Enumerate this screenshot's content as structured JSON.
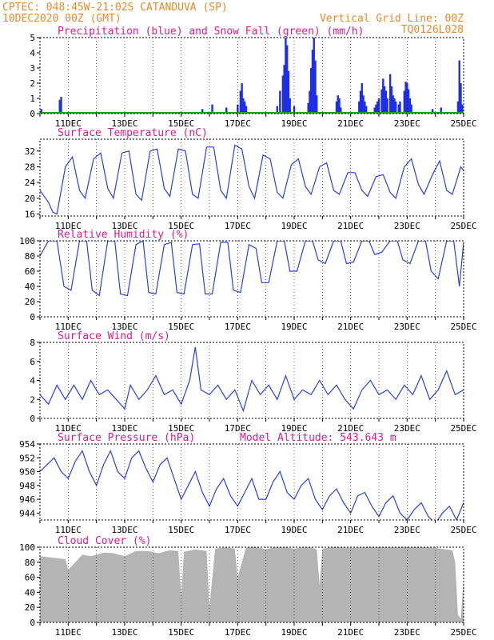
{
  "header": {
    "line1_left": "CPTEC:  048:45W-21:02S  CATANDUVA (SP)",
    "line2_left": "10DEC2020 00Z (GMT)",
    "line2_right": "Vertical Grid Line: 00Z",
    "line3_right": "TQ0126L028"
  },
  "colors": {
    "header": "#e58a2a",
    "title": "#d81b8c",
    "line": "#2a3fe0",
    "precip": "#1f2fe8",
    "snow": "#1aa31a",
    "cloud": "#b4b4b4"
  },
  "x_axis": {
    "start_day": 10,
    "end_day": 25,
    "tick_labels": [
      "11DEC",
      "13DEC",
      "15DEC",
      "17DEC",
      "19DEC",
      "21DEC",
      "23DEC",
      "25DEC"
    ],
    "tick_days": [
      11,
      13,
      15,
      17,
      19,
      21,
      23,
      25
    ]
  },
  "chart_data": [
    {
      "id": "precip",
      "type": "bar",
      "title": "Precipitation (blue) and Snow Fall (green) (mm/h)",
      "ylim": [
        0,
        5
      ],
      "yticks": [
        0,
        1,
        2,
        3,
        4,
        5
      ],
      "bars": [
        [
          10.05,
          0.3
        ],
        [
          10.7,
          0.9
        ],
        [
          10.75,
          1.1
        ],
        [
          15.75,
          0.3
        ],
        [
          16.1,
          0.6
        ],
        [
          16.6,
          0.4
        ],
        [
          17.0,
          0.6
        ],
        [
          17.1,
          1.5
        ],
        [
          17.15,
          2.0
        ],
        [
          17.2,
          1.0
        ],
        [
          17.25,
          0.8
        ],
        [
          17.3,
          0.5
        ],
        [
          18.4,
          0.5
        ],
        [
          18.5,
          1.5
        ],
        [
          18.6,
          2.5
        ],
        [
          18.65,
          3.2
        ],
        [
          18.7,
          5.0
        ],
        [
          18.75,
          4.5
        ],
        [
          18.8,
          2.8
        ],
        [
          18.85,
          1.0
        ],
        [
          19.0,
          0.5
        ],
        [
          19.5,
          0.7
        ],
        [
          19.55,
          1.5
        ],
        [
          19.6,
          3.0
        ],
        [
          19.65,
          4.2
        ],
        [
          19.7,
          5.0
        ],
        [
          19.75,
          3.5
        ],
        [
          19.8,
          1.2
        ],
        [
          20.5,
          0.8
        ],
        [
          20.55,
          1.2
        ],
        [
          20.6,
          1.0
        ],
        [
          20.65,
          0.4
        ],
        [
          21.3,
          0.8
        ],
        [
          21.35,
          1.5
        ],
        [
          21.4,
          2.0
        ],
        [
          21.45,
          1.2
        ],
        [
          21.5,
          0.8
        ],
        [
          21.55,
          0.5
        ],
        [
          21.85,
          0.4
        ],
        [
          21.9,
          0.6
        ],
        [
          21.95,
          0.8
        ],
        [
          22.0,
          1.0
        ],
        [
          22.1,
          1.6
        ],
        [
          22.15,
          2.3
        ],
        [
          22.2,
          1.8
        ],
        [
          22.25,
          1.5
        ],
        [
          22.3,
          1.0
        ],
        [
          22.4,
          2.6
        ],
        [
          22.45,
          1.8
        ],
        [
          22.5,
          1.2
        ],
        [
          22.55,
          1.0
        ],
        [
          22.6,
          0.8
        ],
        [
          22.7,
          0.6
        ],
        [
          22.75,
          0.8
        ],
        [
          22.9,
          1.5
        ],
        [
          22.95,
          2.1
        ],
        [
          23.0,
          2.0
        ],
        [
          23.05,
          1.6
        ],
        [
          23.1,
          1.0
        ],
        [
          23.15,
          0.6
        ],
        [
          23.9,
          0.3
        ],
        [
          24.2,
          0.4
        ],
        [
          24.8,
          0.8
        ],
        [
          24.85,
          3.5
        ],
        [
          24.9,
          2.0
        ],
        [
          24.95,
          0.6
        ]
      ]
    },
    {
      "id": "temp",
      "type": "line",
      "title": "Surface Temperature (nC)",
      "ylim": [
        15.5,
        35
      ],
      "yticks": [
        16,
        20,
        24,
        28,
        32
      ],
      "x": [
        10.0,
        10.3,
        10.45,
        10.6,
        10.9,
        11.15,
        11.4,
        11.6,
        11.9,
        12.15,
        12.4,
        12.6,
        12.9,
        13.15,
        13.4,
        13.6,
        13.9,
        14.15,
        14.4,
        14.6,
        14.9,
        15.15,
        15.4,
        15.6,
        15.9,
        16.15,
        16.4,
        16.6,
        16.9,
        17.15,
        17.4,
        17.6,
        17.9,
        18.15,
        18.4,
        18.6,
        18.9,
        19.15,
        19.4,
        19.6,
        19.9,
        20.15,
        20.4,
        20.6,
        20.9,
        21.15,
        21.4,
        21.6,
        21.9,
        22.15,
        22.4,
        22.6,
        22.9,
        23.15,
        23.4,
        23.6,
        23.9,
        24.15,
        24.4,
        24.6,
        24.9,
        25.0
      ],
      "y": [
        22,
        19,
        16.5,
        16,
        28,
        30.5,
        22,
        20,
        30,
        31.5,
        22.5,
        20,
        31.5,
        32,
        21,
        19.5,
        32,
        32.5,
        22.5,
        20.5,
        32.5,
        32,
        21,
        20,
        33,
        33,
        22,
        20,
        33.5,
        32.5,
        23,
        20,
        31,
        30,
        21.5,
        20,
        28.5,
        30,
        23,
        21,
        28,
        29,
        22,
        21,
        26.5,
        26.5,
        22,
        20.5,
        25.5,
        26,
        21.5,
        20,
        28,
        30,
        23.5,
        21,
        26,
        29.5,
        22,
        21,
        28,
        27
      ]
    },
    {
      "id": "rh",
      "type": "line",
      "title": "Relative Humidity (%)",
      "ylim": [
        0,
        100
      ],
      "yticks": [
        0,
        20,
        40,
        60,
        80,
        100
      ],
      "x": [
        10.0,
        10.3,
        10.6,
        10.85,
        11.1,
        11.4,
        11.65,
        11.85,
        12.1,
        12.4,
        12.65,
        12.85,
        13.1,
        13.4,
        13.65,
        13.85,
        14.1,
        14.4,
        14.65,
        14.85,
        15.1,
        15.4,
        15.65,
        15.85,
        16.1,
        16.4,
        16.65,
        16.85,
        17.1,
        17.4,
        17.65,
        17.85,
        18.1,
        18.4,
        18.65,
        18.85,
        19.1,
        19.4,
        19.65,
        19.85,
        20.1,
        20.4,
        20.65,
        20.85,
        21.1,
        21.4,
        21.65,
        21.85,
        22.1,
        22.4,
        22.65,
        22.85,
        23.1,
        23.4,
        23.65,
        23.85,
        24.1,
        24.4,
        24.65,
        24.85,
        25.0
      ],
      "y": [
        80,
        100,
        100,
        40,
        35,
        100,
        100,
        35,
        28,
        100,
        100,
        30,
        28,
        95,
        100,
        32,
        30,
        95,
        98,
        32,
        30,
        95,
        96,
        30,
        30,
        98,
        98,
        35,
        32,
        95,
        90,
        45,
        45,
        100,
        100,
        60,
        60,
        100,
        100,
        75,
        70,
        100,
        100,
        70,
        72,
        100,
        100,
        82,
        85,
        100,
        100,
        75,
        70,
        100,
        100,
        60,
        50,
        100,
        100,
        40,
        98
      ]
    },
    {
      "id": "wind",
      "type": "line",
      "title": "Surface Wind (m/s)",
      "ylim": [
        0,
        8
      ],
      "yticks": [
        0,
        2,
        4,
        6,
        8
      ],
      "x": [
        10.0,
        10.3,
        10.6,
        10.9,
        11.2,
        11.5,
        11.8,
        12.1,
        12.4,
        12.7,
        13.0,
        13.2,
        13.5,
        13.8,
        14.1,
        14.4,
        14.7,
        15.0,
        15.3,
        15.5,
        15.7,
        16.0,
        16.3,
        16.6,
        16.9,
        17.2,
        17.5,
        17.8,
        18.1,
        18.4,
        18.7,
        19.0,
        19.3,
        19.6,
        19.9,
        20.2,
        20.5,
        20.8,
        21.1,
        21.4,
        21.7,
        22.0,
        22.3,
        22.6,
        22.9,
        23.2,
        23.5,
        23.8,
        24.1,
        24.4,
        24.7,
        25.0
      ],
      "y": [
        2.5,
        1.5,
        3.5,
        2.0,
        3.5,
        2.0,
        4.0,
        2.5,
        3.0,
        2.0,
        1.0,
        3.5,
        2.0,
        3.0,
        4.5,
        2.5,
        3.0,
        1.5,
        4.0,
        7.5,
        3.0,
        2.5,
        3.5,
        2.0,
        3.0,
        0.8,
        4.0,
        2.5,
        3.5,
        2.0,
        4.5,
        2.0,
        3.0,
        2.5,
        4.0,
        2.5,
        3.5,
        2.0,
        1.0,
        3.0,
        4.0,
        2.5,
        3.0,
        2.0,
        3.5,
        2.5,
        4.5,
        2.0,
        3.0,
        5.0,
        2.5,
        3.0
      ]
    },
    {
      "id": "pres",
      "type": "line",
      "title": "Surface Pressure (hPa)",
      "annotation": "Model Altitude: 543.643 m",
      "ylim": [
        943,
        954
      ],
      "yticks": [
        944,
        946,
        948,
        950,
        952,
        954
      ],
      "x": [
        10.0,
        10.25,
        10.5,
        10.75,
        11.0,
        11.25,
        11.5,
        11.75,
        12.0,
        12.25,
        12.5,
        12.75,
        13.0,
        13.25,
        13.5,
        13.75,
        14.0,
        14.25,
        14.5,
        14.75,
        15.0,
        15.25,
        15.5,
        15.75,
        16.0,
        16.25,
        16.5,
        16.75,
        17.0,
        17.25,
        17.5,
        17.75,
        18.0,
        18.25,
        18.5,
        18.75,
        19.0,
        19.25,
        19.5,
        19.75,
        20.0,
        20.25,
        20.5,
        20.75,
        21.0,
        21.25,
        21.5,
        21.75,
        22.0,
        22.25,
        22.5,
        22.75,
        23.0,
        23.25,
        23.5,
        23.75,
        24.0,
        24.25,
        24.5,
        24.75,
        25.0
      ],
      "y": [
        950,
        951,
        952,
        950,
        949,
        951.5,
        953,
        950,
        948,
        951,
        953,
        950,
        949,
        952,
        953,
        950.5,
        948.5,
        951,
        952,
        949,
        946,
        948,
        950,
        947,
        945,
        947.5,
        949,
        946.5,
        945,
        947,
        949,
        946,
        946,
        948.5,
        950,
        947,
        946,
        948,
        949,
        946,
        944.5,
        946.5,
        947.5,
        945.5,
        944,
        946.5,
        947,
        945,
        943.5,
        945.5,
        946.5,
        944,
        943,
        944.5,
        945.5,
        943.5,
        942.5,
        944,
        945,
        943,
        945.5
      ]
    },
    {
      "id": "cloud",
      "type": "area",
      "title": "Cloud Cover (%)",
      "ylim": [
        0,
        100
      ],
      "yticks": [
        0,
        20,
        40,
        60,
        80,
        100
      ],
      "x": [
        10.0,
        10.5,
        10.9,
        11.0,
        11.5,
        11.8,
        12.3,
        12.6,
        13.0,
        13.4,
        13.8,
        14.2,
        14.6,
        14.9,
        15.0,
        15.1,
        15.5,
        15.9,
        16.0,
        16.2,
        16.6,
        16.9,
        17.0,
        17.3,
        17.7,
        18.0,
        18.3,
        18.7,
        19.0,
        19.3,
        19.6,
        19.8,
        19.9,
        20.0,
        20.3,
        20.7,
        21.0,
        21.4,
        21.8,
        22.2,
        22.6,
        23.0,
        23.4,
        23.8,
        24.2,
        24.6,
        24.7,
        24.8,
        24.9,
        25.0
      ],
      "y": [
        88,
        86,
        84,
        70,
        90,
        88,
        93,
        92,
        88,
        95,
        95,
        92,
        96,
        95,
        35,
        94,
        97,
        95,
        20,
        98,
        100,
        98,
        60,
        100,
        100,
        97,
        100,
        100,
        98,
        100,
        100,
        97,
        50,
        98,
        100,
        100,
        99,
        100,
        100,
        100,
        100,
        100,
        100,
        100,
        98,
        96,
        80,
        10,
        5,
        60
      ]
    }
  ]
}
